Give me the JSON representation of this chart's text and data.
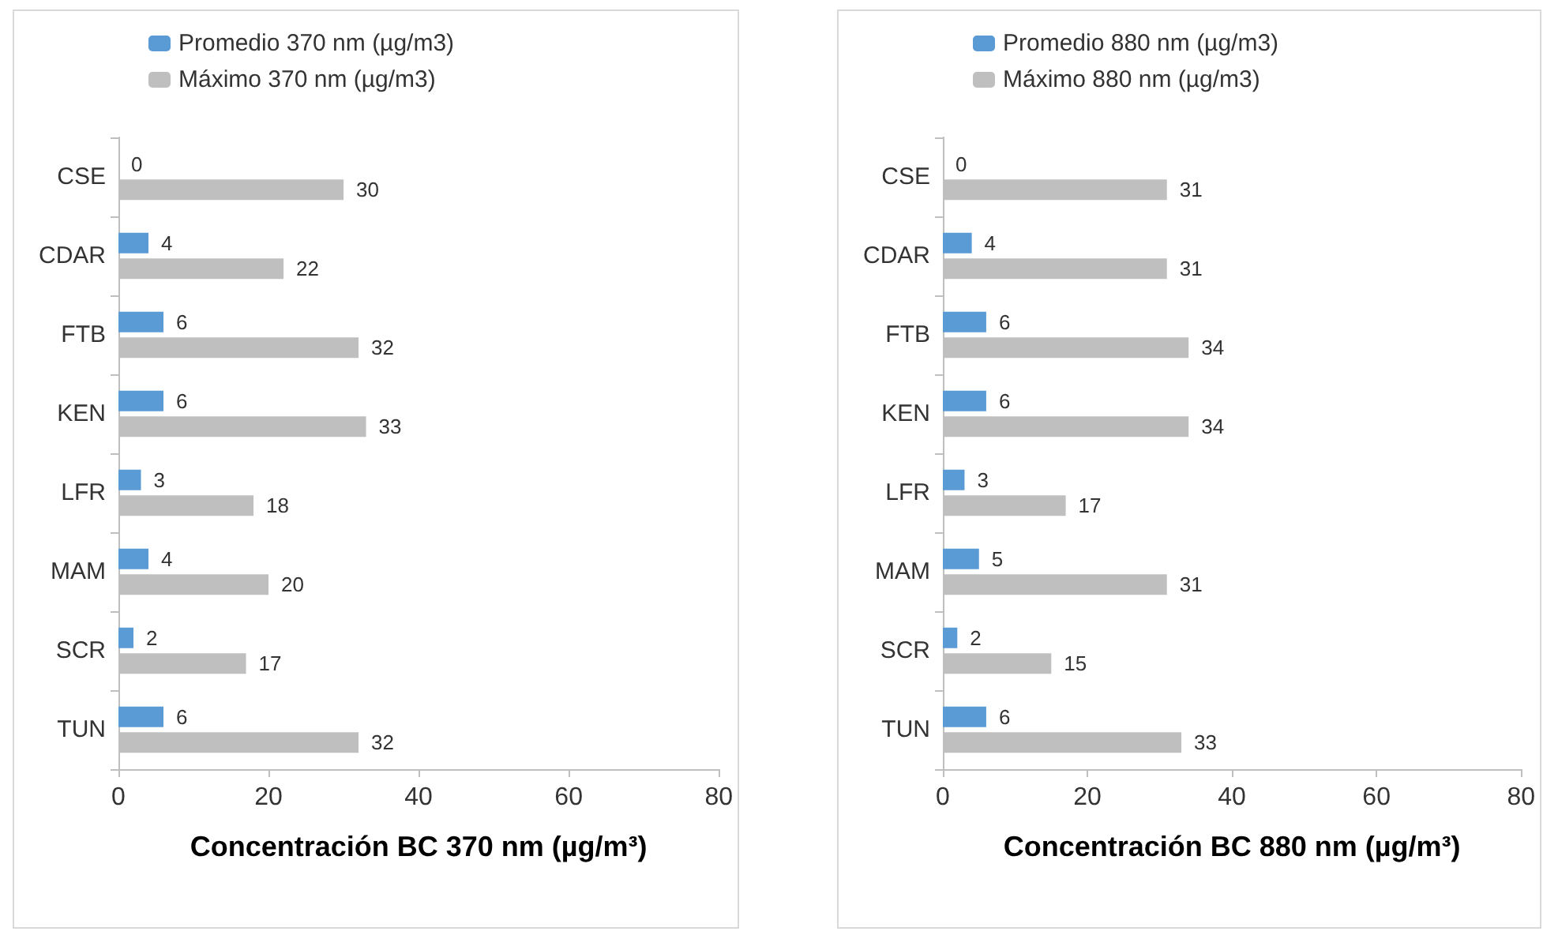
{
  "chart_data": [
    {
      "type": "bar",
      "orientation": "horizontal",
      "xlabel": "Concentración BC 370 nm (µg/m³)",
      "categories": [
        "CSE",
        "CDAR",
        "FTB",
        "KEN",
        "LFR",
        "MAM",
        "SCR",
        "TUN"
      ],
      "series": [
        {
          "name": "Promedio 370 nm (µg/m3)",
          "color": "#5b9bd5",
          "values": [
            0,
            4,
            6,
            6,
            3,
            4,
            2,
            6
          ]
        },
        {
          "name": "Máximo 370 nm (µg/m3)",
          "color": "#bfbfbf",
          "values": [
            30,
            22,
            32,
            33,
            18,
            20,
            17,
            32
          ]
        }
      ],
      "xlim": [
        0,
        80
      ],
      "xticks": [
        0,
        20,
        40,
        60,
        80
      ],
      "grid": false,
      "legend": "top",
      "data_labels": true
    },
    {
      "type": "bar",
      "orientation": "horizontal",
      "xlabel": "Concentración BC 880 nm (µg/m³)",
      "categories": [
        "CSE",
        "CDAR",
        "FTB",
        "KEN",
        "LFR",
        "MAM",
        "SCR",
        "TUN"
      ],
      "series": [
        {
          "name": "Promedio 880 nm (µg/m3)",
          "color": "#5b9bd5",
          "values": [
            0,
            4,
            6,
            6,
            3,
            5,
            2,
            6
          ]
        },
        {
          "name": "Máximo 880 nm (µg/m3)",
          "color": "#bfbfbf",
          "values": [
            31,
            31,
            34,
            34,
            17,
            31,
            15,
            33
          ]
        }
      ],
      "xlim": [
        0,
        80
      ],
      "xticks": [
        0,
        20,
        40,
        60,
        80
      ],
      "grid": false,
      "legend": "top",
      "data_labels": true
    }
  ]
}
